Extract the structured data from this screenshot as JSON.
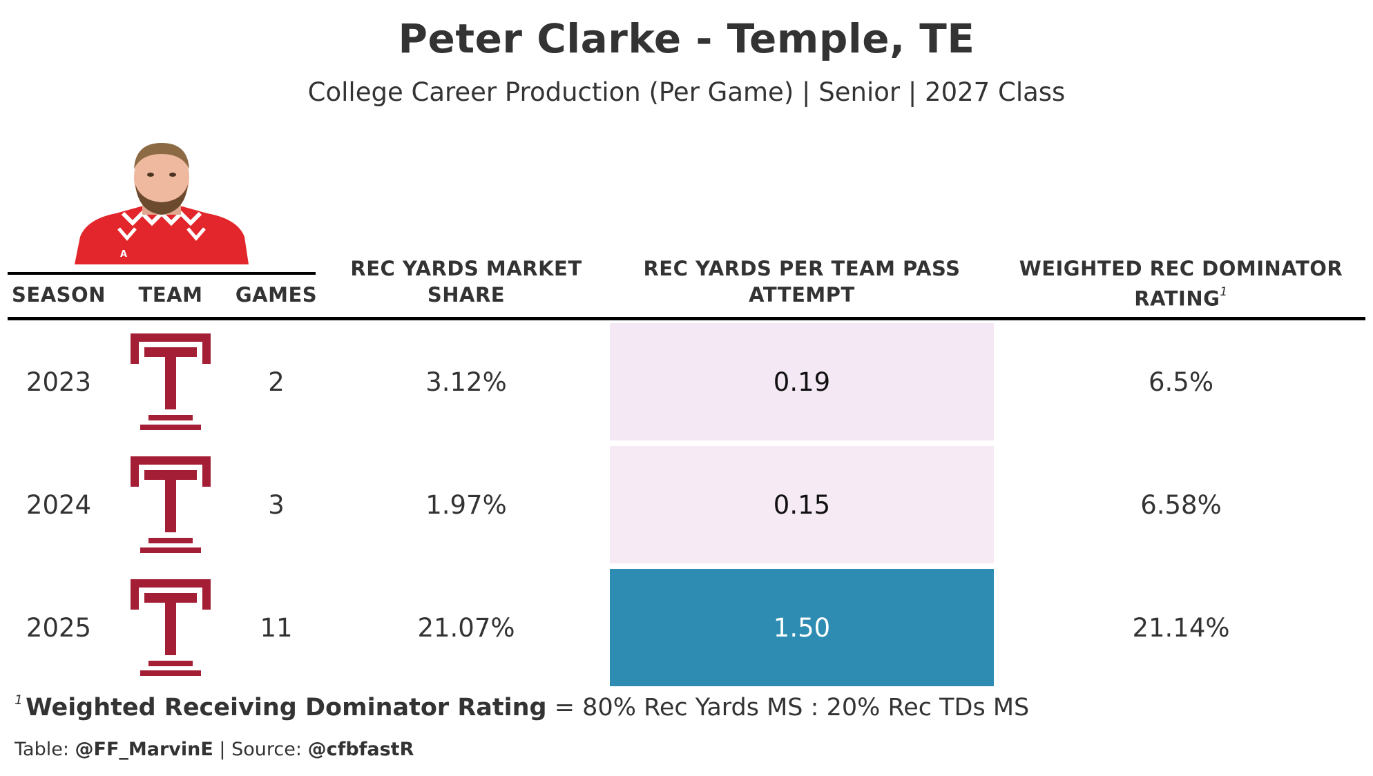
{
  "title": "Peter Clarke - Temple, TE",
  "subtitle": "College Career Production (Per Game) | Senior | 2027 Class",
  "colors": {
    "temple_cherry": "#a41e35",
    "low_fill_2023": "#f4e8f4",
    "low_fill_2024": "#f6ebf5",
    "high_fill_2025": "#2e8cb3"
  },
  "columns": {
    "season": "SEASON",
    "team": "TEAM",
    "games": "GAMES",
    "market_share_line1": "REC YARDS MARKET",
    "market_share_line2": "SHARE",
    "per_attempt_line1": "REC YARDS PER TEAM PASS",
    "per_attempt_line2": "ATTEMPT",
    "dominator_line1": "WEIGHTED REC DOMINATOR",
    "dominator_line2": "RATING",
    "dominator_footnote_mark": "1"
  },
  "chart_data": {
    "type": "table",
    "title": "Peter Clarke - Temple, TE",
    "subtitle": "College Career Production (Per Game) | Senior | 2027 Class",
    "columns": [
      "SEASON",
      "TEAM",
      "GAMES",
      "REC YARDS MARKET SHARE",
      "REC YARDS PER TEAM PASS ATTEMPT",
      "WEIGHTED REC DOMINATOR RATING"
    ],
    "rows": [
      {
        "season": "2023",
        "team_logo": "temple-t-icon",
        "games": "2",
        "market_share": "3.12%",
        "per_attempt": "0.19",
        "per_attempt_value": 0.19,
        "dominator": "6.5%"
      },
      {
        "season": "2024",
        "team_logo": "temple-t-icon",
        "games": "3",
        "market_share": "1.97%",
        "per_attempt": "0.15",
        "per_attempt_value": 0.15,
        "dominator": "6.58%"
      },
      {
        "season": "2025",
        "team_logo": "temple-t-icon",
        "games": "11",
        "market_share": "21.07%",
        "per_attempt": "1.50",
        "per_attempt_value": 1.5,
        "dominator": "21.14%"
      }
    ]
  },
  "footnote": {
    "mark": "1",
    "term": "Weighted Receiving Dominator Rating",
    "definition": "= 80% Rec Yards MS : 20% Rec TDs MS"
  },
  "source": {
    "table_label": "Table:",
    "table_handle": "@FF_MarvinE",
    "separator": "|",
    "source_label": "Source:",
    "source_handle": "@cfbfastR"
  }
}
